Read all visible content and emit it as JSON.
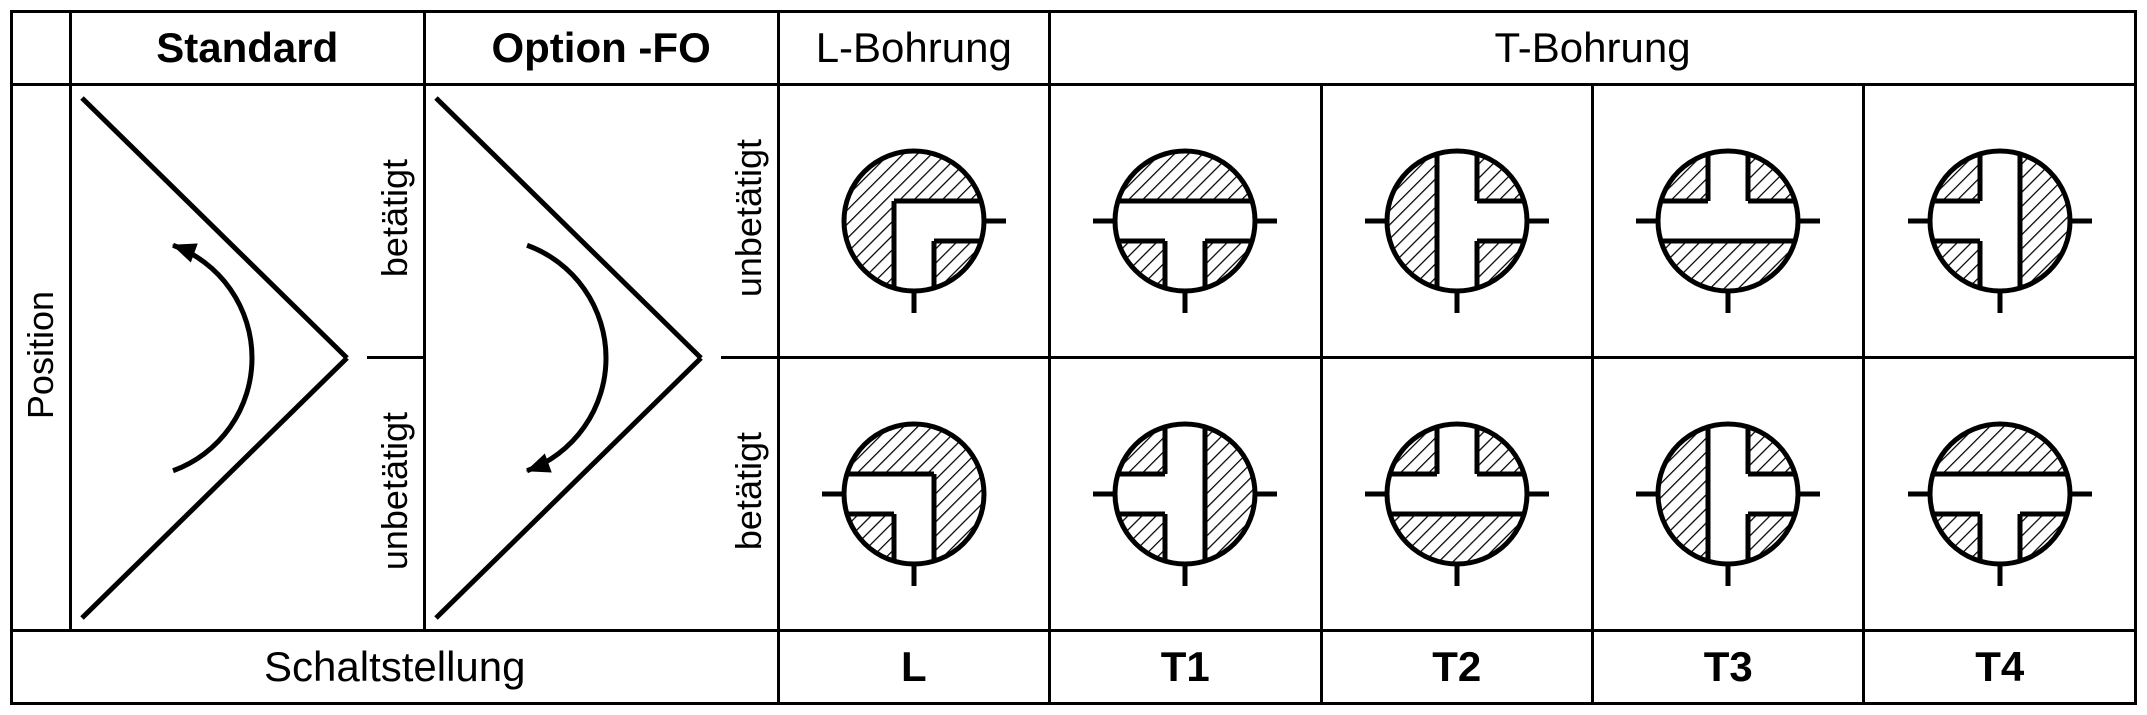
{
  "headers": {
    "standard": "Standard",
    "option": "Option -FO",
    "lbore": "L-Bohrung",
    "tbore": "T-Bohrung"
  },
  "rowlabels": {
    "position": "Position",
    "betatigt": "betätigt",
    "unbetatigt": "unbetätigt"
  },
  "footer": {
    "schaltstellung": "Schaltstellung",
    "L": "L",
    "T1": "T1",
    "T2": "T2",
    "T3": "T3",
    "T4": "T4"
  },
  "valve": {
    "radius": 70,
    "stroke_width": 5,
    "stroke_color": "#000000",
    "hatch_spacing": 10,
    "channel_halfwidth": 20,
    "port_stub": 22,
    "svg_size": 220
  },
  "configs": {
    "L_top": {
      "ports": [
        "E",
        "S"
      ],
      "channels": [
        "E",
        "S"
      ],
      "mode": "L"
    },
    "L_bot": {
      "ports": [
        "W",
        "S"
      ],
      "channels": [
        "W",
        "S"
      ],
      "mode": "L"
    },
    "T1_top": {
      "ports": [
        "W",
        "E",
        "S"
      ],
      "channels": [
        "W",
        "E",
        "S"
      ],
      "mode": "T"
    },
    "T1_bot": {
      "ports": [
        "W",
        "E",
        "S"
      ],
      "channels": [
        "N",
        "W",
        "S"
      ],
      "mode": "T"
    },
    "T2_top": {
      "ports": [
        "W",
        "E",
        "S"
      ],
      "channels": [
        "N",
        "E",
        "S"
      ],
      "mode": "T"
    },
    "T2_bot": {
      "ports": [
        "W",
        "E",
        "S"
      ],
      "channels": [
        "W",
        "E",
        "N"
      ],
      "mode": "T"
    },
    "T3_top": {
      "ports": [
        "W",
        "E",
        "S"
      ],
      "channels": [
        "W",
        "E",
        "N"
      ],
      "mode": "T"
    },
    "T3_bot": {
      "ports": [
        "W",
        "E",
        "S"
      ],
      "channels": [
        "N",
        "E",
        "S"
      ],
      "mode": "T"
    },
    "T4_top": {
      "ports": [
        "W",
        "E",
        "S"
      ],
      "channels": [
        "N",
        "W",
        "S"
      ],
      "mode": "T"
    },
    "T4_bot": {
      "ports": [
        "W",
        "E",
        "S"
      ],
      "channels": [
        "W",
        "E",
        "S"
      ],
      "mode": "T"
    }
  },
  "actuators": {
    "standard": {
      "arrow_on": "top"
    },
    "option": {
      "arrow_on": "bottom"
    }
  }
}
